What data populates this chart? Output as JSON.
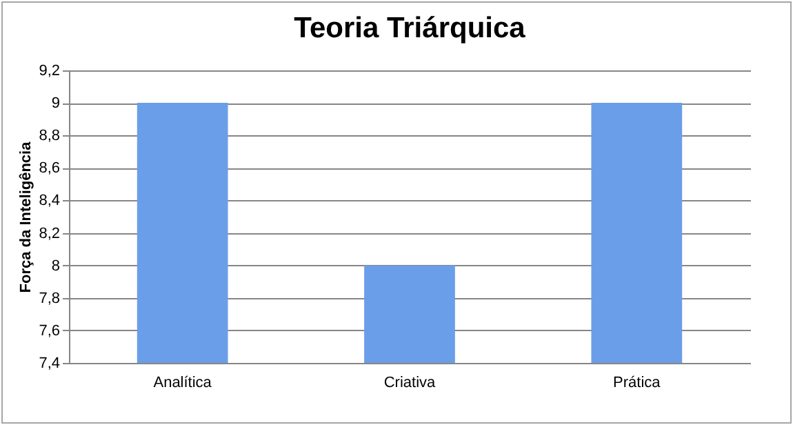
{
  "chart_data": {
    "type": "bar",
    "title": "Teoria Triárquica",
    "ylabel": "Força da Inteligência",
    "categories": [
      "Analítica",
      "Criativa",
      "Prática"
    ],
    "values": [
      9,
      8,
      9
    ],
    "color": "#6b9ee8",
    "ylim": [
      7.4,
      9.2
    ],
    "yticks": [
      {
        "value": 7.4,
        "label": "7,4"
      },
      {
        "value": 7.6,
        "label": "7,6"
      },
      {
        "value": 7.8,
        "label": "7,8"
      },
      8,
      {
        "value": 8.2,
        "label": "8,2"
      },
      {
        "value": 8.4,
        "label": "8,4"
      },
      {
        "value": 8.6,
        "label": "8,6"
      },
      {
        "value": 8.8,
        "label": "8,8"
      },
      9,
      {
        "value": 9.2,
        "label": "9,2"
      }
    ],
    "grid": "y"
  }
}
